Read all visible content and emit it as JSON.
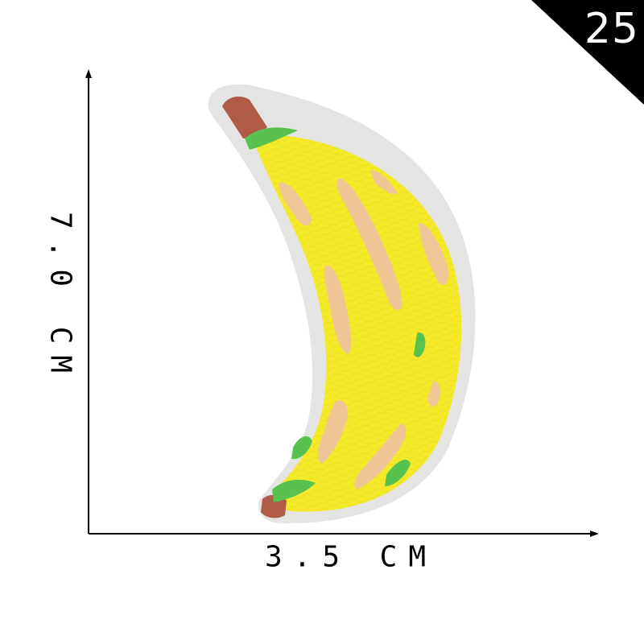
{
  "badge": {
    "number": "25",
    "color": "#000000"
  },
  "dimensions": {
    "height_label": "7.0 CM",
    "width_label": "3.5 CM"
  },
  "product": {
    "image_icon": "banana-patch-icon",
    "colors": {
      "felt_border": "#e4e4e2",
      "body": "#f5ea2a",
      "stem": "#b05a48",
      "spots": "#f0c3a3",
      "leaf_accent": "#59c24f"
    }
  }
}
